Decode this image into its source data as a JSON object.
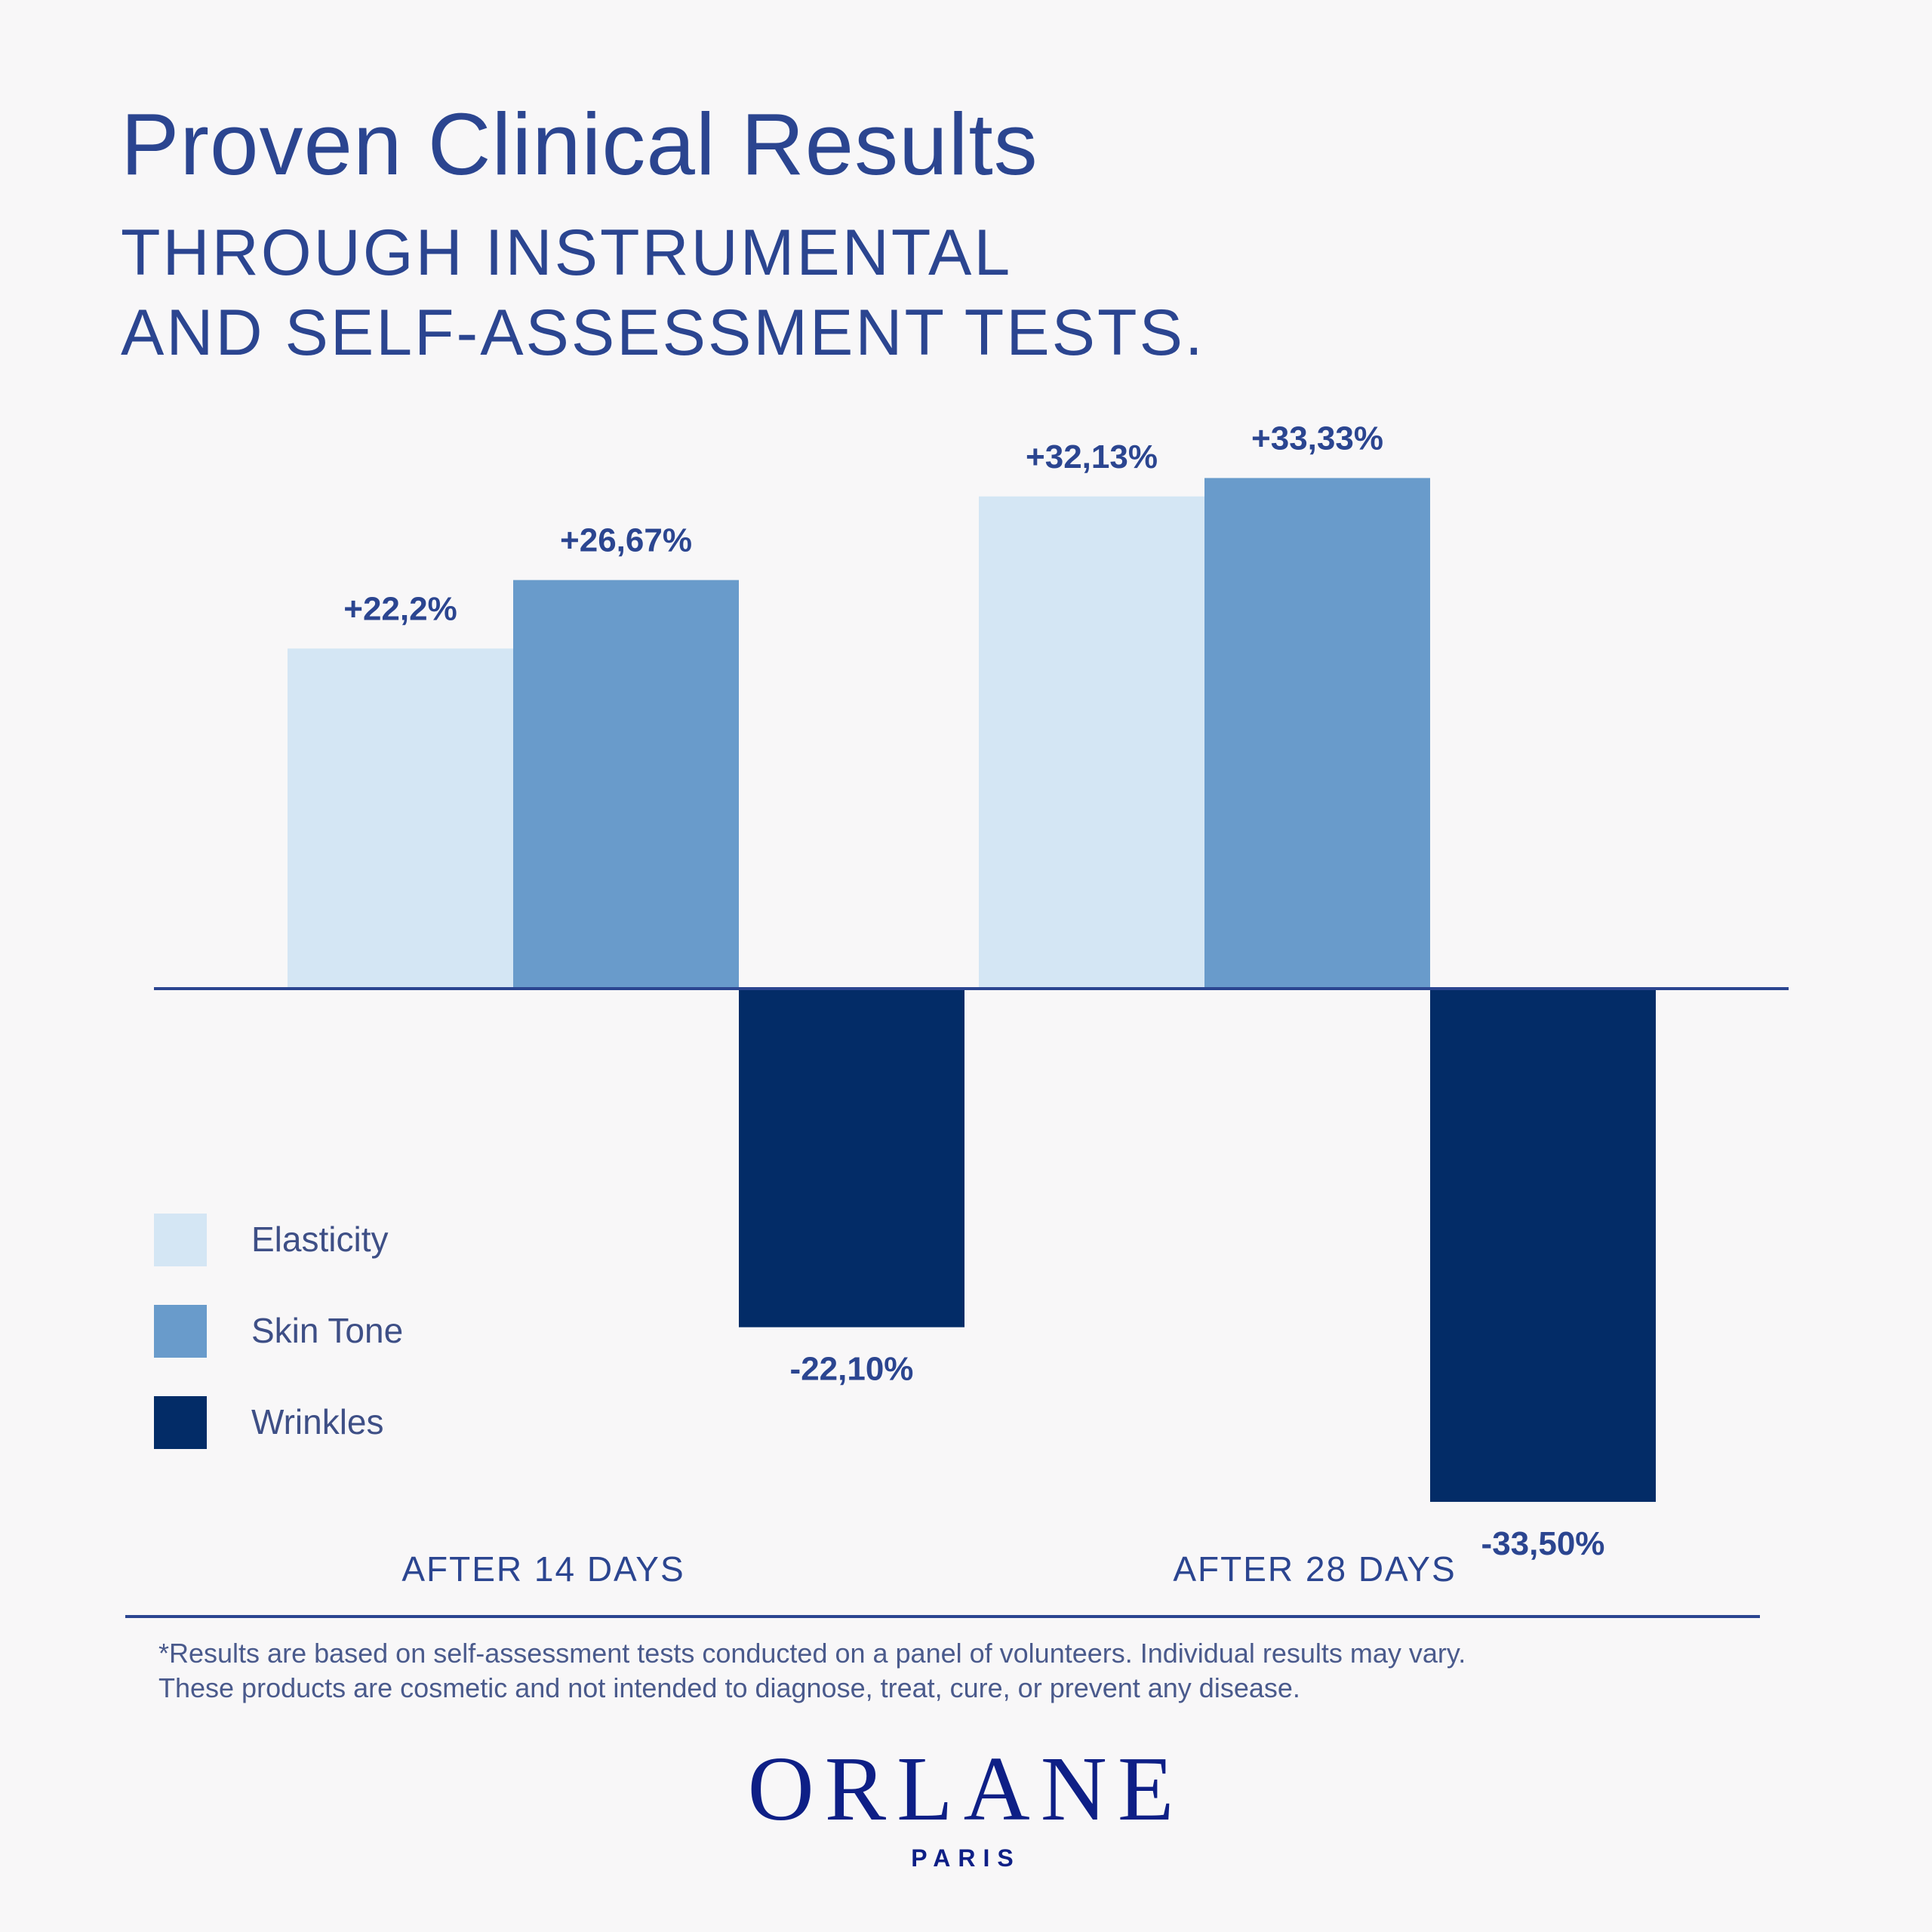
{
  "chart_data": {
    "type": "bar",
    "title": "Proven Clinical Results",
    "subtitle_lines": [
      "THROUGH INSTRUMENTAL",
      "AND SELF-ASSESSMENT TESTS."
    ],
    "categories": [
      "AFTER 14 DAYS",
      "AFTER 28 DAYS"
    ],
    "series": [
      {
        "name": "Elasticity",
        "color": "#d4e6f4",
        "values": [
          22.2,
          32.13
        ],
        "labels": [
          "+22,2%",
          "+32,13%"
        ]
      },
      {
        "name": "Skin Tone",
        "color": "#699bcb",
        "values": [
          26.67,
          33.33
        ],
        "labels": [
          "+26,67%",
          "+33,33%"
        ]
      },
      {
        "name": "Wrinkles",
        "color": "#032c67",
        "values": [
          -22.1,
          -33.5
        ],
        "labels": [
          "-22,10%",
          "-33,50%"
        ]
      }
    ],
    "legend_position": "bottom-left",
    "baseline_color": "#2b4590",
    "label_color": "#2b4590"
  },
  "footnote": [
    "*Results are based on self-assessment tests conducted on a panel of volunteers. Individual results may vary.",
    "These products are cosmetic and not intended to diagnose, treat, cure, or prevent any disease."
  ],
  "logo": {
    "word": "ORLANE",
    "sub": "PARIS"
  }
}
